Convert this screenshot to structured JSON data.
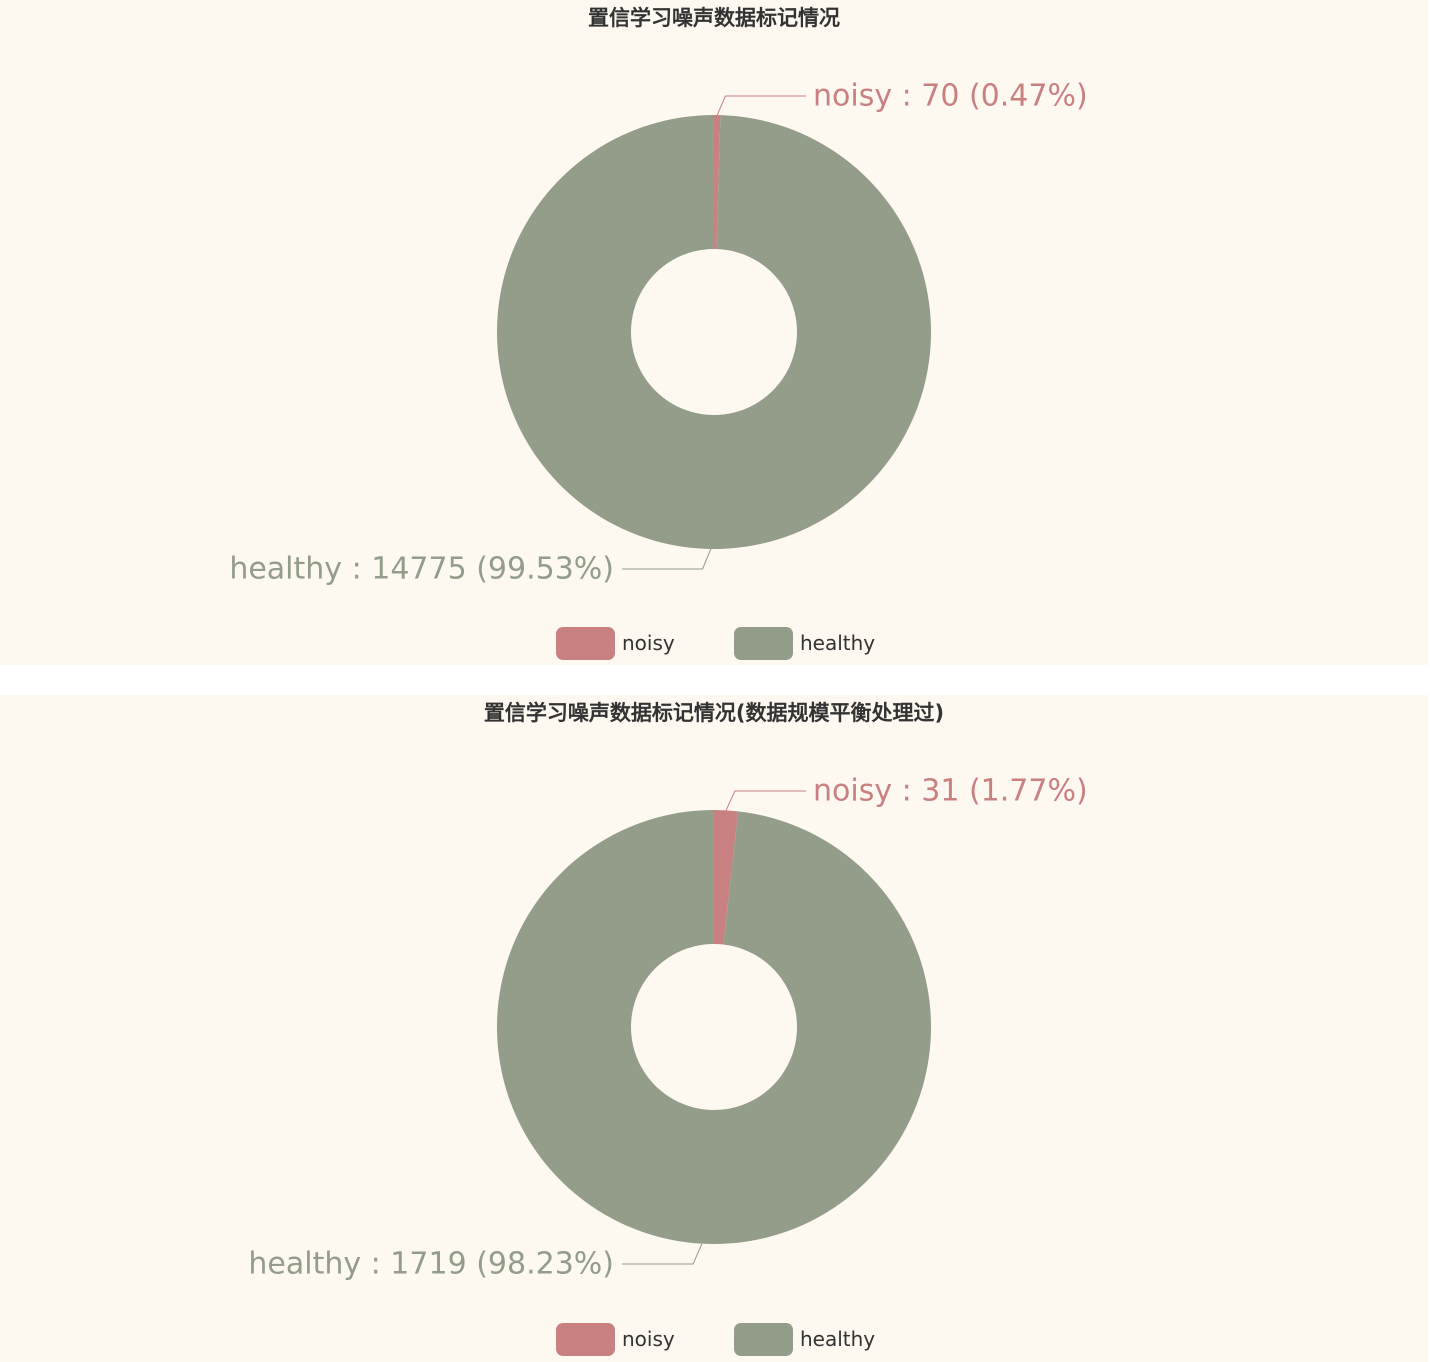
{
  "colors": {
    "background": "#fdf8f0",
    "noisy": "#c98080",
    "healthy": "#939d8a",
    "title": "#333333"
  },
  "charts": [
    {
      "title": "置信学习噪声数据标记情况",
      "legend": [
        "noisy",
        "healthy"
      ],
      "label_texts": [
        "noisy : 70 (0.47%)",
        "healthy : 14775 (99.53%)"
      ]
    },
    {
      "title": "置信学习噪声数据标记情况(数据规模平衡处理过)",
      "legend": [
        "noisy",
        "healthy"
      ],
      "label_texts": [
        "noisy : 31 (1.77%)",
        "healthy : 1719 (98.23%)"
      ]
    }
  ],
  "chart_data": [
    {
      "type": "pie",
      "title": "置信学习噪声数据标记情况",
      "donut": true,
      "legend_position": "bottom",
      "slices": [
        {
          "name": "noisy",
          "value": 70,
          "percent": 0.47,
          "color": "#c98080"
        },
        {
          "name": "healthy",
          "value": 14775,
          "percent": 99.53,
          "color": "#939d8a"
        }
      ]
    },
    {
      "type": "pie",
      "title": "置信学习噪声数据标记情况(数据规模平衡处理过)",
      "donut": true,
      "legend_position": "bottom",
      "slices": [
        {
          "name": "noisy",
          "value": 31,
          "percent": 1.77,
          "color": "#c98080"
        },
        {
          "name": "healthy",
          "value": 1719,
          "percent": 98.23,
          "color": "#939d8a"
        }
      ]
    }
  ]
}
